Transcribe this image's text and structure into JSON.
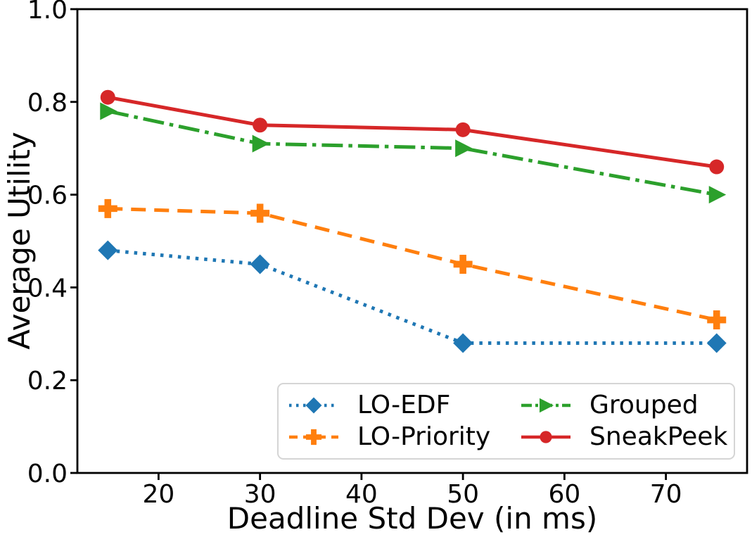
{
  "chart_data": {
    "type": "line",
    "title": "",
    "xlabel": "Deadline Std Dev (in ms)",
    "ylabel": "Average Utility",
    "x": [
      15,
      30,
      50,
      75
    ],
    "xlim": [
      12,
      78
    ],
    "ylim": [
      0,
      1
    ],
    "xticks": [
      20,
      30,
      40,
      50,
      60,
      70
    ],
    "ytick_labels": [
      "0.0",
      "0.2",
      "0.4",
      "0.6",
      "0.8",
      "1.0"
    ],
    "yticks": [
      0,
      0.2,
      0.4,
      0.6,
      0.8,
      1.0
    ],
    "grid": false,
    "legend_position": "inside lower-right, 2 columns",
    "series": [
      {
        "name": "LO-EDF",
        "color": "#1f77b4",
        "linestyle": "dotted",
        "marker": "diamond",
        "values": [
          0.48,
          0.45,
          0.28,
          0.28
        ]
      },
      {
        "name": "LO-Priority",
        "color": "#ff7f0e",
        "linestyle": "dashed",
        "marker": "plus",
        "values": [
          0.57,
          0.56,
          0.45,
          0.33
        ]
      },
      {
        "name": "Grouped",
        "color": "#2ca02c",
        "linestyle": "dashdot",
        "marker": "triangle-right",
        "values": [
          0.78,
          0.71,
          0.7,
          0.6
        ]
      },
      {
        "name": "SneakPeek",
        "color": "#d62728",
        "linestyle": "solid",
        "marker": "circle",
        "values": [
          0.81,
          0.75,
          0.74,
          0.66
        ]
      }
    ],
    "axis_color": "#000000"
  }
}
